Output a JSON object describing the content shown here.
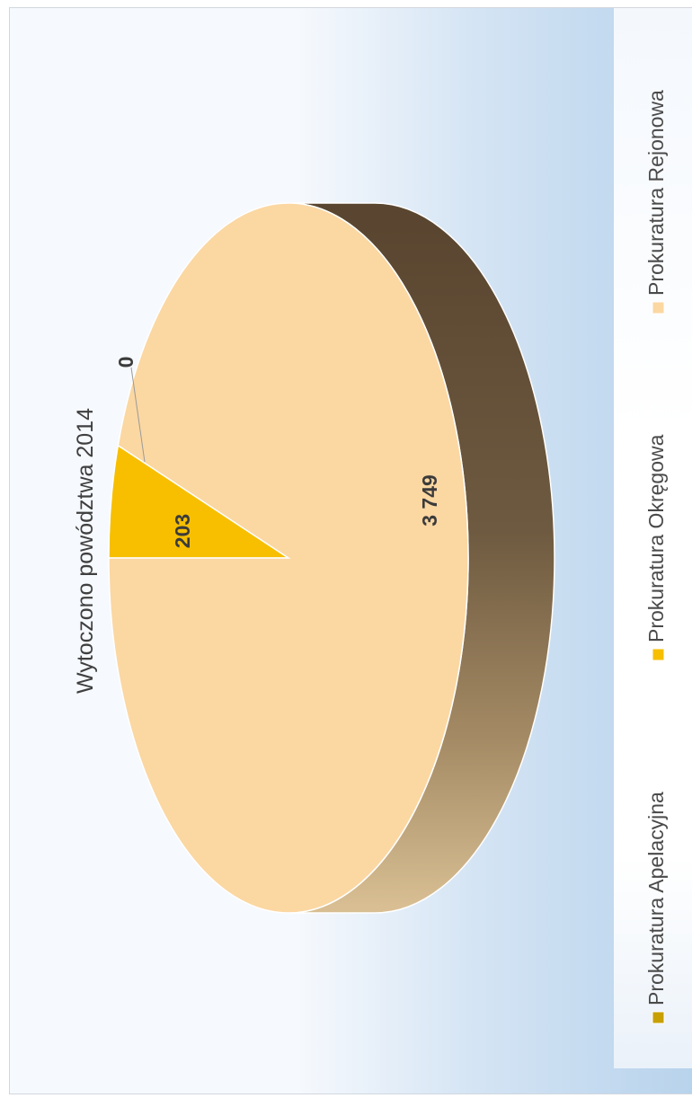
{
  "chart_data": {
    "type": "pie",
    "title": "Wytoczono powództwa  2014",
    "categories": [
      "Prokuratura Apelacyjna",
      "Prokuratura Okręgowa",
      "Prokuratura Rejonowa"
    ],
    "values": [
      0,
      203,
      3749
    ],
    "value_labels": [
      "0",
      "203",
      "3 749"
    ],
    "colors": [
      "#c8a000",
      "#f7bf00",
      "#fbd7a2"
    ],
    "legend_position": "bottom",
    "style": "3d"
  }
}
